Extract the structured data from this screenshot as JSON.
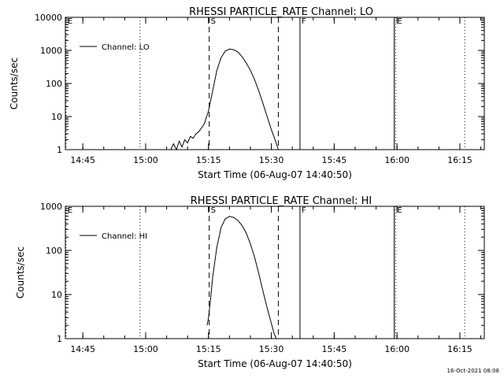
{
  "footer": {
    "timestamp": "16-Oct-2021 08:08"
  },
  "chart_data": [
    {
      "type": "line",
      "title": "RHESSI PARTICLE_RATE Channel: LO",
      "xlabel": "Start Time (06-Aug-07 14:40:50)",
      "ylabel": "Counts/sec",
      "yscale": "log",
      "ylim": [
        1,
        10000
      ],
      "y_ticks": [
        "1",
        "10",
        "100",
        "1000",
        "10000"
      ],
      "xlim": [
        "14:40:50",
        "16:20:50"
      ],
      "x_ticks": [
        "14:45",
        "15:00",
        "15:15",
        "15:30",
        "15:45",
        "16:00",
        "16:15"
      ],
      "grid": false,
      "legend_position": "top-left",
      "series": [
        {
          "name": "Channel: LO",
          "x": [
            "15:06:00",
            "15:06:40",
            "15:07:20",
            "15:08:00",
            "15:08:40",
            "15:09:20",
            "15:10:00",
            "15:10:40",
            "15:11:20",
            "15:12:00",
            "15:12:40",
            "15:13:20",
            "15:14:00",
            "15:15:00",
            "15:16:00",
            "15:17:00",
            "15:18:00",
            "15:19:00",
            "15:20:00",
            "15:21:00",
            "15:22:00",
            "15:23:00",
            "15:24:00",
            "15:25:00",
            "15:26:00",
            "15:27:00",
            "15:28:00",
            "15:29:00",
            "15:30:00",
            "15:31:00",
            "15:31:40"
          ],
          "values": [
            1,
            1.5,
            1,
            1.8,
            1.2,
            2,
            1.6,
            2.5,
            2.2,
            3,
            3.5,
            4.5,
            6,
            15,
            60,
            250,
            600,
            950,
            1100,
            1050,
            900,
            650,
            420,
            250,
            130,
            60,
            25,
            10,
            4,
            1.8,
            1
          ]
        }
      ],
      "markers": [
        {
          "label": "E",
          "time": "14:41:00",
          "style": "dotted"
        },
        {
          "label": "",
          "time": "14:58:40",
          "style": "dotted"
        },
        {
          "label": "S",
          "time": "15:15:10",
          "style": "dashed"
        },
        {
          "label": "",
          "time": "15:31:40",
          "style": "dashed"
        },
        {
          "label": "F",
          "time": "15:36:50",
          "style": "solid"
        },
        {
          "label": "",
          "time": "15:59:20",
          "style": "solid"
        },
        {
          "label": "E",
          "time": "15:59:40",
          "style": "dotted"
        },
        {
          "label": "",
          "time": "16:16:10",
          "style": "dotted"
        }
      ]
    },
    {
      "type": "line",
      "title": "RHESSI PARTICLE_RATE Channel: HI",
      "xlabel": "Start Time (06-Aug-07 14:40:50)",
      "ylabel": "Counts/sec",
      "yscale": "log",
      "ylim": [
        1,
        1000
      ],
      "y_ticks": [
        "1",
        "10",
        "100",
        "1000"
      ],
      "xlim": [
        "14:40:50",
        "16:20:50"
      ],
      "x_ticks": [
        "14:45",
        "15:00",
        "15:15",
        "15:30",
        "15:45",
        "16:00",
        "16:15"
      ],
      "grid": false,
      "legend_position": "top-left",
      "series": [
        {
          "name": "Channel: HI",
          "x": [
            "15:14:40",
            "15:15:00",
            "15:15:30",
            "15:16:00",
            "15:17:00",
            "15:18:00",
            "15:19:00",
            "15:20:00",
            "15:21:00",
            "15:22:00",
            "15:23:00",
            "15:24:00",
            "15:25:00",
            "15:26:00",
            "15:27:00",
            "15:28:00",
            "15:29:00",
            "15:30:00",
            "15:30:40",
            "15:31:10"
          ],
          "values": [
            2,
            3,
            8,
            25,
            120,
            330,
            520,
            590,
            560,
            480,
            370,
            250,
            140,
            70,
            30,
            12,
            5,
            2.2,
            1.3,
            1
          ]
        }
      ],
      "markers": [
        {
          "label": "E",
          "time": "14:41:00",
          "style": "dotted"
        },
        {
          "label": "",
          "time": "14:58:40",
          "style": "dotted"
        },
        {
          "label": "S",
          "time": "15:15:10",
          "style": "dashed"
        },
        {
          "label": "",
          "time": "15:31:40",
          "style": "dashed"
        },
        {
          "label": "F",
          "time": "15:36:50",
          "style": "solid"
        },
        {
          "label": "",
          "time": "15:59:20",
          "style": "solid"
        },
        {
          "label": "E",
          "time": "15:59:40",
          "style": "dotted"
        },
        {
          "label": "",
          "time": "16:16:10",
          "style": "dotted"
        }
      ]
    }
  ]
}
